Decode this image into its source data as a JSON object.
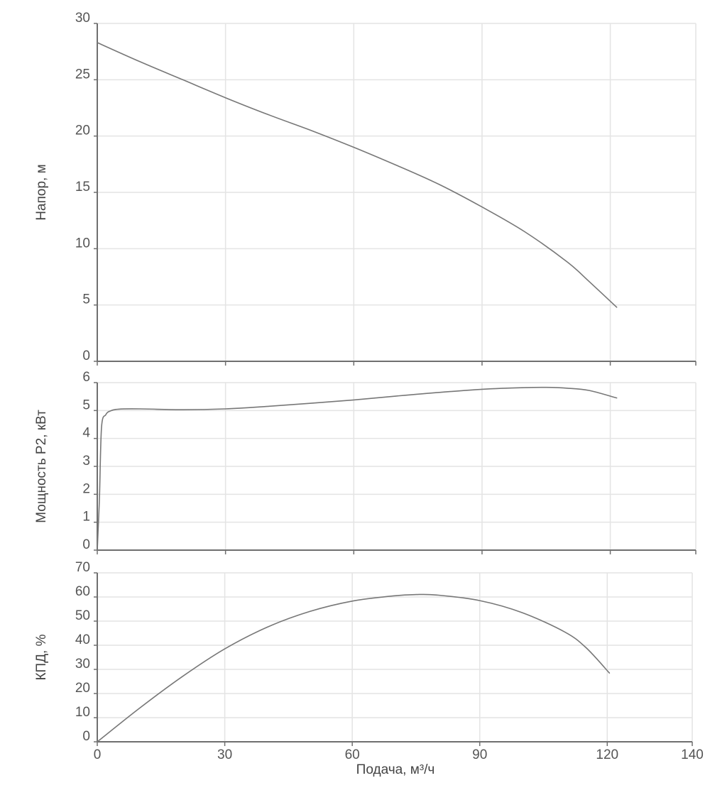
{
  "chart_data": [
    {
      "type": "line",
      "title": "",
      "xlabel": "",
      "ylabel": "Напор, м",
      "xlim": [
        0,
        140
      ],
      "ylim": [
        0,
        30
      ],
      "x_ticks": [
        "0",
        "30",
        "60",
        "90",
        "120",
        "140"
      ],
      "y_ticks": [
        "0",
        "5",
        "10",
        "15",
        "20",
        "25",
        "30"
      ],
      "x_tick_labels_visible": false,
      "grid": true,
      "series": [
        {
          "color": "#777777",
          "x": [
            0,
            10,
            20,
            30,
            40,
            50,
            60,
            70,
            80,
            90,
            100,
            110,
            115,
            121.5
          ],
          "y": [
            28.3,
            26.6,
            25.0,
            23.4,
            21.9,
            20.5,
            19.0,
            17.4,
            15.7,
            13.7,
            11.5,
            8.8,
            7.1,
            4.8
          ]
        }
      ]
    },
    {
      "type": "line",
      "title": "",
      "xlabel": "",
      "ylabel": "Мощность P2, кВт",
      "xlim": [
        0,
        140
      ],
      "ylim": [
        0,
        6
      ],
      "x_ticks": [
        "0",
        "30",
        "60",
        "90",
        "120",
        "140"
      ],
      "y_ticks": [
        "0",
        "1",
        "2",
        "3",
        "4",
        "5",
        "6"
      ],
      "x_tick_labels_visible": false,
      "grid": true,
      "series": [
        {
          "color": "#777777",
          "x": [
            0,
            0.5,
            1,
            2,
            3,
            5,
            10,
            20,
            30,
            40,
            50,
            60,
            70,
            80,
            90,
            100,
            105,
            110,
            115,
            121.5
          ],
          "y": [
            0,
            1.8,
            4.4,
            4.85,
            4.98,
            5.05,
            5.06,
            5.03,
            5.06,
            5.15,
            5.26,
            5.38,
            5.52,
            5.65,
            5.76,
            5.82,
            5.83,
            5.8,
            5.72,
            5.45
          ]
        }
      ]
    },
    {
      "type": "line",
      "title": "",
      "xlabel": "Подача, м³/ч",
      "ylabel": "КПД, %",
      "xlim": [
        0,
        140
      ],
      "ylim": [
        0,
        70
      ],
      "x_ticks": [
        "0",
        "30",
        "60",
        "90",
        "120",
        "140"
      ],
      "y_ticks": [
        "0",
        "10",
        "20",
        "30",
        "40",
        "50",
        "60",
        "70"
      ],
      "x_tick_labels_visible": true,
      "grid": true,
      "series": [
        {
          "color": "#777777",
          "x": [
            0,
            10,
            20,
            30,
            40,
            50,
            60,
            70,
            75,
            80,
            90,
            100,
            110,
            115,
            120.5
          ],
          "y": [
            0,
            14,
            27,
            38.5,
            47.5,
            54,
            58.3,
            60.5,
            61,
            60.8,
            58.5,
            53.5,
            45.5,
            39,
            28.5
          ]
        }
      ]
    }
  ]
}
